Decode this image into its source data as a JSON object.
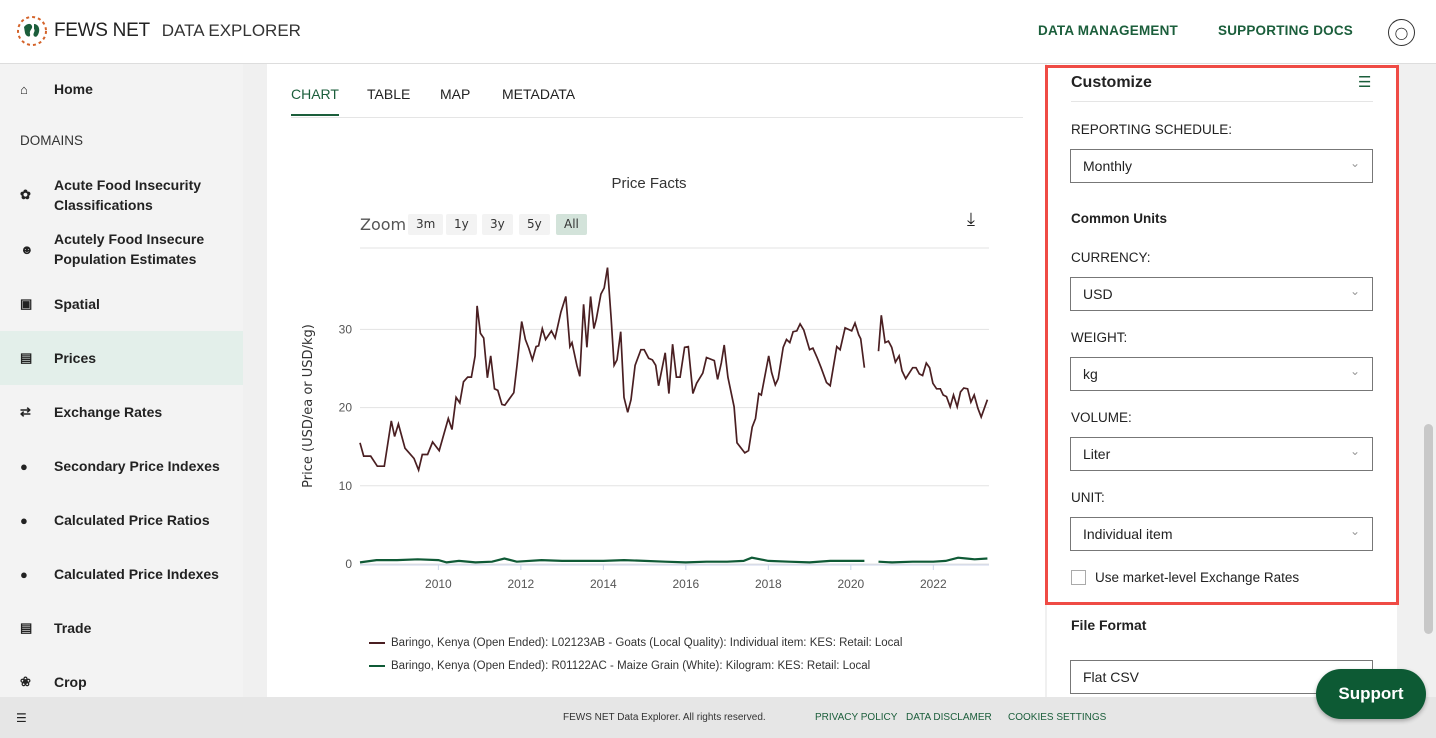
{
  "header": {
    "brand": "FEWS NET",
    "product": "DATA EXPLORER",
    "nav": [
      "DATA MANAGEMENT",
      "SUPPORTING DOCS"
    ],
    "user_icon": "user-circle-icon"
  },
  "sidebar": {
    "home": "Home",
    "section": "DOMAINS",
    "items": [
      {
        "label": "Acute Food Insecurity Classifications",
        "icon": "wheat-icon"
      },
      {
        "label": "Acutely Food Insecure Population Estimates",
        "icon": "people-icon"
      },
      {
        "label": "Spatial",
        "icon": "map-icon"
      },
      {
        "label": "Prices",
        "icon": "money-icon",
        "active": true
      },
      {
        "label": "Exchange Rates",
        "icon": "exchange-icon"
      },
      {
        "label": "Secondary Price Indexes",
        "icon": "spi-icon"
      },
      {
        "label": "Calculated Price Ratios",
        "icon": "cpr-icon"
      },
      {
        "label": "Calculated Price Indexes",
        "icon": "cpi-icon"
      },
      {
        "label": "Trade",
        "icon": "trade-icon"
      },
      {
        "label": "Crop",
        "icon": "sprout-icon"
      }
    ]
  },
  "tabs": [
    "CHART",
    "TABLE",
    "MAP",
    "METADATA"
  ],
  "zoom": {
    "label": "Zoom",
    "options": [
      "3m",
      "1y",
      "3y",
      "5y",
      "All"
    ],
    "selected": "All"
  },
  "colors": {
    "accent": "#1b5e3b",
    "goats": "#4a1f22",
    "maize": "#0f5a36",
    "highlight": "#ef4b45"
  },
  "chart_data": {
    "type": "line",
    "title": "Price Facts",
    "ylabel": "Price (USD/ea or USD/kg)",
    "xlabel": "",
    "xlim": [
      2008.1,
      2023.35
    ],
    "ylim": [
      0,
      40.4
    ],
    "yticks": [
      0,
      10,
      20,
      30
    ],
    "xticks": [
      2010,
      2012,
      2014,
      2016,
      2018,
      2020,
      2022
    ],
    "grid": true,
    "legend": "bottom",
    "series": [
      {
        "name": "Baringo, Kenya (Open Ended): L02123AB - Goats (Local Quality): Individual item: KES: Retail: Local",
        "color": "#4a1f22",
        "x": [
          2008.1,
          2008.19,
          2008.36,
          2008.52,
          2008.69,
          2008.86,
          2008.94,
          2009.03,
          2009.19,
          2009.41,
          2009.52,
          2009.61,
          2009.74,
          2009.86,
          2010.02,
          2010.24,
          2010.33,
          2010.43,
          2010.52,
          2010.61,
          2010.71,
          2010.8,
          2010.89,
          2010.94,
          2011.02,
          2011.1,
          2011.19,
          2011.27,
          2011.36,
          2011.44,
          2011.54,
          2011.61,
          2011.83,
          2011.91,
          2012.02,
          2012.11,
          2012.19,
          2012.28,
          2012.37,
          2012.43,
          2012.52,
          2012.6,
          2012.74,
          2012.83,
          2012.97,
          2013.09,
          2013.19,
          2013.24,
          2013.36,
          2013.43,
          2013.52,
          2013.6,
          2013.69,
          2013.77,
          2013.83,
          2013.94,
          2014.02,
          2014.1,
          2014.19,
          2014.26,
          2014.33,
          2014.42,
          2014.5,
          2014.59,
          2014.67,
          2014.77,
          2014.91,
          2014.99,
          2015.1,
          2015.19,
          2015.27,
          2015.34,
          2015.5,
          2015.59,
          2015.68,
          2015.77,
          2015.86,
          2015.97,
          2016.06,
          2016.17,
          2016.26,
          2016.41,
          2016.5,
          2016.69,
          2016.77,
          2016.86,
          2016.93,
          2017.02,
          2017.17,
          2017.24,
          2017.43,
          2017.52,
          2017.61,
          2017.69,
          2017.77,
          2017.83,
          2018.01,
          2018.08,
          2018.17,
          2018.24,
          2018.36,
          2018.44,
          2018.52,
          2018.6,
          2018.69,
          2018.77,
          2018.86,
          2019.0,
          2019.08,
          2019.19,
          2019.28,
          2019.41,
          2019.5,
          2019.66,
          2019.74,
          2019.86,
          2020.02,
          2020.1,
          2020.19,
          2020.24,
          2020.33,
          2020.5,
          2020.67,
          2020.74,
          2020.83,
          2020.91,
          2020.99,
          2021.08,
          2021.17,
          2021.24,
          2021.33,
          2021.5,
          2021.58,
          2021.66,
          2021.74,
          2021.83,
          2021.91,
          2021.99,
          2022.08,
          2022.17,
          2022.24,
          2022.32,
          2022.41,
          2022.49,
          2022.58,
          2022.66,
          2022.74,
          2022.83,
          2022.91,
          2022.99,
          2023.08,
          2023.16,
          2023.31
        ],
        "y": [
          15.5,
          13.8,
          13.8,
          12.5,
          12.5,
          18.3,
          16.3,
          17.9,
          14.8,
          13.5,
          12.0,
          14.0,
          14.0,
          15.6,
          14.5,
          18.6,
          17.2,
          21.3,
          20.6,
          23.3,
          23.9,
          23.9,
          26.6,
          33.0,
          29.5,
          28.9,
          23.8,
          26.6,
          22.4,
          22.2,
          20.4,
          20.3,
          21.9,
          25.5,
          31.0,
          28.7,
          27.6,
          26.1,
          27.8,
          27.9,
          30.1,
          28.7,
          29.8,
          28.9,
          32.2,
          34.2,
          27.8,
          28.3,
          25.3,
          24.0,
          33.2,
          27.7,
          34.2,
          30.1,
          31.3,
          34.5,
          35.3,
          37.9,
          31.3,
          25.4,
          26.1,
          29.7,
          21.3,
          19.4,
          21.0,
          25.4,
          27.4,
          27.4,
          26.3,
          26.1,
          25.4,
          22.8,
          27.0,
          21.8,
          28.1,
          23.9,
          23.9,
          27.7,
          27.8,
          21.8,
          23.1,
          24.4,
          26.4,
          26.0,
          23.6,
          25.7,
          28.0,
          23.9,
          20.1,
          15.5,
          14.2,
          14.5,
          17.5,
          18.6,
          21.8,
          21.6,
          26.6,
          24.5,
          22.9,
          23.7,
          27.7,
          28.7,
          28.3,
          29.7,
          29.8,
          30.7,
          29.9,
          27.4,
          27.6,
          26.3,
          25.1,
          23.2,
          22.8,
          27.8,
          27.4,
          30.2,
          29.8,
          30.8,
          29.3,
          28.8,
          25.1,
          null,
          27.2,
          31.8,
          28.3,
          28.5,
          27.7,
          25.8,
          26.6,
          24.7,
          23.7,
          25.1,
          25.1,
          24.3,
          24.1,
          25.7,
          25.1,
          23.1,
          22.4,
          22.4,
          21.6,
          21.4,
          20.1,
          21.6,
          20.1,
          22.0,
          22.5,
          22.4,
          20.7,
          21.6,
          19.9,
          18.8,
          21.0
        ]
      },
      {
        "name": "Baringo, Kenya (Open Ended): R01122AC - Maize Grain (White): Kilogram: KES: Retail: Local",
        "color": "#0f5a36",
        "x": [
          2008.1,
          2008.5,
          2009.0,
          2009.5,
          2010.0,
          2010.2,
          2010.5,
          2010.9,
          2011.3,
          2011.6,
          2011.9,
          2012.5,
          2013.0,
          2013.5,
          2014.0,
          2014.5,
          2015.0,
          2015.5,
          2016.0,
          2016.5,
          2017.0,
          2017.4,
          2017.6,
          2018.0,
          2018.5,
          2019.0,
          2019.5,
          2020.0,
          2020.33,
          2020.5,
          2020.67,
          2021.0,
          2021.5,
          2022.0,
          2022.3,
          2022.6,
          2022.8,
          2023.0,
          2023.31
        ],
        "y": [
          0.2,
          0.5,
          0.5,
          0.6,
          0.5,
          0.2,
          0.4,
          0.2,
          0.3,
          0.7,
          0.3,
          0.5,
          0.4,
          0.4,
          0.4,
          0.5,
          0.4,
          0.3,
          0.2,
          0.3,
          0.3,
          0.4,
          0.8,
          0.4,
          0.3,
          0.2,
          0.4,
          0.4,
          0.4,
          null,
          0.3,
          0.2,
          0.3,
          0.3,
          0.4,
          0.8,
          0.7,
          0.6,
          0.7
        ]
      }
    ]
  },
  "customize": {
    "title": "Customize",
    "panel_icon": "indent-list-icon",
    "reporting_label": "REPORTING SCHEDULE:",
    "reporting_value": "Monthly",
    "common_units": "Common Units",
    "currency_label": "CURRENCY:",
    "currency_value": "USD",
    "weight_label": "WEIGHT:",
    "weight_value": "kg",
    "volume_label": "VOLUME:",
    "volume_value": "Liter",
    "unit_label": "UNIT:",
    "unit_value": "Individual item",
    "exchange_checkbox": "Use market-level Exchange Rates",
    "exchange_checked": false
  },
  "file_format": {
    "title": "File Format",
    "value": "Flat CSV"
  },
  "footer": {
    "copyright": "FEWS NET Data Explorer. All rights reserved.",
    "links": [
      "PRIVACY POLICY",
      "DATA DISCLAMER",
      "COOKIES SETTINGS"
    ]
  },
  "support": "Support"
}
